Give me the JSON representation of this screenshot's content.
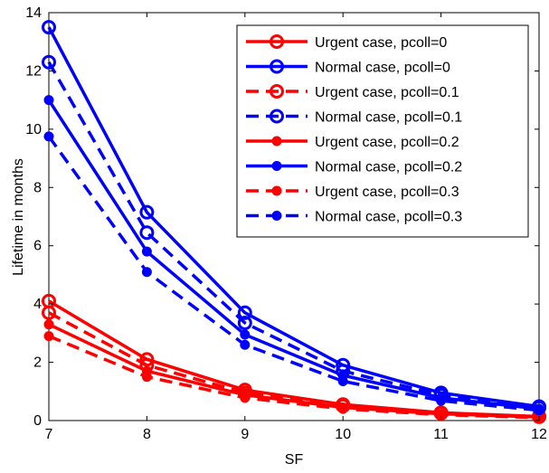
{
  "chart_data": {
    "type": "line",
    "xlabel": "SF",
    "ylabel": "Lifetime in months",
    "xlim": [
      7,
      12
    ],
    "ylim": [
      0,
      14
    ],
    "xticks": [
      "7",
      "8",
      "9",
      "10",
      "11",
      "12"
    ],
    "yticks": [
      "0",
      "2",
      "4",
      "6",
      "8",
      "10",
      "12",
      "14"
    ],
    "grid": false,
    "legend_position": "top-right",
    "x": [
      7,
      8,
      9,
      10,
      11,
      12
    ],
    "series": [
      {
        "name": "Urgent case, pcoll=0",
        "color": "#ff0000",
        "line": "solid",
        "marker": "open-circle",
        "values": [
          4.1,
          2.1,
          1.05,
          0.55,
          0.27,
          0.14
        ]
      },
      {
        "name": "Normal case, pcoll=0",
        "color": "#0000ff",
        "line": "solid",
        "marker": "open-circle",
        "values": [
          13.5,
          7.15,
          3.7,
          1.9,
          0.95,
          0.48
        ]
      },
      {
        "name": "Urgent case, pcoll=0.1",
        "color": "#ff0000",
        "line": "dashed",
        "marker": "open-circle",
        "values": [
          3.7,
          1.9,
          0.95,
          0.5,
          0.25,
          0.13
        ]
      },
      {
        "name": "Normal case, pcoll=0.1",
        "color": "#0000ff",
        "line": "dashed",
        "marker": "open-circle",
        "values": [
          12.3,
          6.45,
          3.35,
          1.7,
          0.87,
          0.44
        ]
      },
      {
        "name": "Urgent case, pcoll=0.2",
        "color": "#ff0000",
        "line": "solid",
        "marker": "filled-circle",
        "values": [
          3.3,
          1.7,
          0.88,
          0.45,
          0.23,
          0.12
        ]
      },
      {
        "name": "Normal case, pcoll=0.2",
        "color": "#0000ff",
        "line": "solid",
        "marker": "filled-circle",
        "values": [
          11.0,
          5.8,
          2.95,
          1.55,
          0.78,
          0.4
        ]
      },
      {
        "name": "Urgent case, pcoll=0.3",
        "color": "#ff0000",
        "line": "dashed",
        "marker": "filled-circle",
        "values": [
          2.9,
          1.5,
          0.78,
          0.4,
          0.2,
          0.1
        ]
      },
      {
        "name": "Normal case, pcoll=0.3",
        "color": "#0000ff",
        "line": "dashed",
        "marker": "filled-circle",
        "values": [
          9.75,
          5.1,
          2.6,
          1.35,
          0.68,
          0.35
        ]
      }
    ]
  }
}
